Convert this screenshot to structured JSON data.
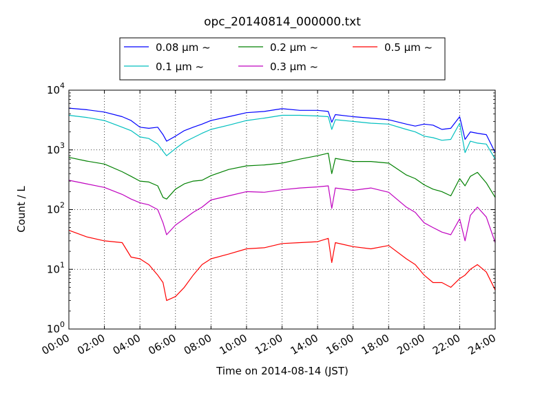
{
  "chart_data": {
    "type": "line",
    "title": "opc_20140814_000000.txt",
    "xlabel": "Time on 2014-08-14 (JST)",
    "ylabel": "Count / L",
    "xlim": [
      "00:00",
      "24:00"
    ],
    "x_tick_labels": [
      "00:00",
      "02:00",
      "04:00",
      "06:00",
      "08:00",
      "10:00",
      "12:00",
      "14:00",
      "16:00",
      "18:00",
      "20:00",
      "22:00",
      "24:00"
    ],
    "yscale": "log",
    "ylim": [
      1,
      10000
    ],
    "y_tick_labels": [
      {
        "base": "10",
        "exp": "0"
      },
      {
        "base": "10",
        "exp": "1"
      },
      {
        "base": "10",
        "exp": "2"
      },
      {
        "base": "10",
        "exp": "3"
      },
      {
        "base": "10",
        "exp": "4"
      }
    ],
    "grid": true,
    "legend_position": "top-center",
    "x_hours": [
      0,
      1,
      2,
      3,
      3.5,
      4,
      4.5,
      5,
      5.3,
      5.5,
      6,
      6.5,
      7,
      7.5,
      8,
      9,
      10,
      11,
      12,
      13,
      14,
      14.6,
      14.8,
      15,
      16,
      17,
      18,
      19,
      19.5,
      20,
      20.5,
      21,
      21.5,
      22,
      22.3,
      22.6,
      23,
      23.5,
      24
    ],
    "series": [
      {
        "name": "0.08 μm ~",
        "color": "#0000ff",
        "values": [
          5000,
          4700,
          4300,
          3600,
          3100,
          2400,
          2300,
          2400,
          1800,
          1400,
          1700,
          2100,
          2400,
          2700,
          3100,
          3600,
          4200,
          4400,
          4900,
          4600,
          4600,
          4400,
          2900,
          3900,
          3600,
          3400,
          3200,
          2700,
          2500,
          2700,
          2600,
          2200,
          2300,
          3600,
          1500,
          2000,
          1900,
          1800,
          900
        ]
      },
      {
        "name": "0.1 μm ~",
        "color": "#00bfbf",
        "values": [
          3800,
          3500,
          3100,
          2400,
          2100,
          1650,
          1550,
          1250,
          950,
          800,
          1050,
          1350,
          1600,
          1900,
          2200,
          2600,
          3100,
          3400,
          3800,
          3800,
          3700,
          3600,
          2200,
          3200,
          3000,
          2800,
          2700,
          2200,
          2000,
          1700,
          1600,
          1450,
          1500,
          2800,
          900,
          1400,
          1300,
          1250,
          700
        ]
      },
      {
        "name": "0.2 μm ~",
        "color": "#008000",
        "values": [
          750,
          650,
          580,
          430,
          360,
          300,
          290,
          250,
          160,
          150,
          220,
          270,
          300,
          310,
          370,
          470,
          540,
          560,
          600,
          700,
          800,
          880,
          400,
          720,
          640,
          640,
          600,
          380,
          330,
          260,
          220,
          200,
          170,
          330,
          250,
          360,
          420,
          280,
          160
        ]
      },
      {
        "name": "0.3 μm ~",
        "color": "#bf00bf",
        "values": [
          310,
          270,
          235,
          180,
          150,
          130,
          120,
          100,
          60,
          38,
          55,
          70,
          90,
          110,
          145,
          170,
          200,
          195,
          215,
          230,
          240,
          250,
          105,
          230,
          210,
          230,
          195,
          110,
          90,
          60,
          50,
          42,
          38,
          70,
          30,
          80,
          110,
          75,
          28
        ]
      },
      {
        "name": "0.5 μm ~",
        "color": "#ff0000",
        "values": [
          45,
          35,
          30,
          28,
          16,
          15,
          12,
          8,
          6,
          3,
          3.5,
          5,
          8,
          12,
          15,
          18,
          22,
          23,
          27,
          28,
          29,
          33,
          13,
          28,
          24,
          22,
          25,
          15,
          12,
          8,
          6,
          6,
          5,
          7,
          8,
          10,
          12,
          9,
          4.5
        ]
      }
    ]
  }
}
